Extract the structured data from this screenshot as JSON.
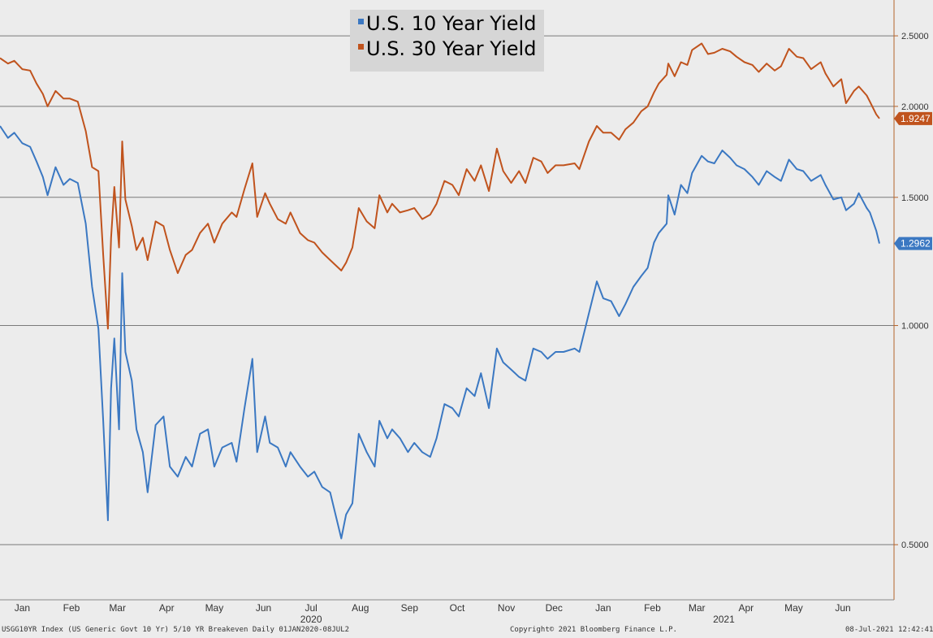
{
  "chart_data": {
    "type": "line",
    "yscale": "log",
    "ylim": [
      0.42,
      2.8
    ],
    "y_ticks": [
      "0.5000",
      "1.0000",
      "1.5000",
      "2.0000",
      "2.5000"
    ],
    "y_tick_values": [
      0.5,
      1.0,
      1.5,
      2.0,
      2.5
    ],
    "x_range": [
      "2020-01-01",
      "2021-07-08"
    ],
    "x_ticks": [
      {
        "label": "Jan",
        "date": "2020-01-15"
      },
      {
        "label": "Feb",
        "date": "2020-02-15"
      },
      {
        "label": "Mar",
        "date": "2020-03-15"
      },
      {
        "label": "Apr",
        "date": "2020-04-15"
      },
      {
        "label": "May",
        "date": "2020-05-15"
      },
      {
        "label": "Jun",
        "date": "2020-06-15"
      },
      {
        "label": "Jul",
        "date": "2020-07-15"
      },
      {
        "label": "Aug",
        "date": "2020-08-15"
      },
      {
        "label": "Sep",
        "date": "2020-09-15"
      },
      {
        "label": "Oct",
        "date": "2020-10-15"
      },
      {
        "label": "Nov",
        "date": "2020-11-15"
      },
      {
        "label": "Dec",
        "date": "2020-12-15"
      },
      {
        "label": "Jan",
        "date": "2021-01-15"
      },
      {
        "label": "Feb",
        "date": "2021-02-15"
      },
      {
        "label": "Mar",
        "date": "2021-03-15"
      },
      {
        "label": "Apr",
        "date": "2021-04-15"
      },
      {
        "label": "May",
        "date": "2021-05-15"
      },
      {
        "label": "Jun",
        "date": "2021-06-15"
      }
    ],
    "year_labels": [
      {
        "label": "2020",
        "date": "2020-07-15"
      },
      {
        "label": "2021",
        "date": "2021-04-01"
      }
    ],
    "grid": "horizontal",
    "legend_position": "top-center",
    "series": [
      {
        "name": "U.S. 10 Year Yield",
        "color": "#3b78c2",
        "last_label": "1.2962",
        "points": [
          [
            "2020-01-01",
            1.88
          ],
          [
            "2020-01-06",
            1.81
          ],
          [
            "2020-01-10",
            1.84
          ],
          [
            "2020-01-15",
            1.78
          ],
          [
            "2020-01-20",
            1.76
          ],
          [
            "2020-01-24",
            1.68
          ],
          [
            "2020-01-28",
            1.6
          ],
          [
            "2020-01-31",
            1.51
          ],
          [
            "2020-02-05",
            1.65
          ],
          [
            "2020-02-10",
            1.56
          ],
          [
            "2020-02-14",
            1.59
          ],
          [
            "2020-02-19",
            1.57
          ],
          [
            "2020-02-24",
            1.38
          ],
          [
            "2020-02-28",
            1.13
          ],
          [
            "2020-03-03",
            0.99
          ],
          [
            "2020-03-06",
            0.74
          ],
          [
            "2020-03-09",
            0.54
          ],
          [
            "2020-03-11",
            0.82
          ],
          [
            "2020-03-13",
            0.96
          ],
          [
            "2020-03-16",
            0.72
          ],
          [
            "2020-03-18",
            1.18
          ],
          [
            "2020-03-20",
            0.92
          ],
          [
            "2020-03-24",
            0.84
          ],
          [
            "2020-03-27",
            0.72
          ],
          [
            "2020-03-31",
            0.67
          ],
          [
            "2020-04-03",
            0.59
          ],
          [
            "2020-04-08",
            0.73
          ],
          [
            "2020-04-13",
            0.75
          ],
          [
            "2020-04-17",
            0.64
          ],
          [
            "2020-04-22",
            0.62
          ],
          [
            "2020-04-27",
            0.66
          ],
          [
            "2020-05-01",
            0.64
          ],
          [
            "2020-05-06",
            0.71
          ],
          [
            "2020-05-11",
            0.72
          ],
          [
            "2020-05-15",
            0.64
          ],
          [
            "2020-05-20",
            0.68
          ],
          [
            "2020-05-26",
            0.69
          ],
          [
            "2020-05-29",
            0.65
          ],
          [
            "2020-06-03",
            0.77
          ],
          [
            "2020-06-08",
            0.9
          ],
          [
            "2020-06-11",
            0.67
          ],
          [
            "2020-06-16",
            0.75
          ],
          [
            "2020-06-19",
            0.69
          ],
          [
            "2020-06-24",
            0.68
          ],
          [
            "2020-06-29",
            0.64
          ],
          [
            "2020-07-02",
            0.67
          ],
          [
            "2020-07-08",
            0.64
          ],
          [
            "2020-07-13",
            0.62
          ],
          [
            "2020-07-17",
            0.63
          ],
          [
            "2020-07-22",
            0.6
          ],
          [
            "2020-07-27",
            0.59
          ],
          [
            "2020-08-03",
            0.51
          ],
          [
            "2020-08-06",
            0.55
          ],
          [
            "2020-08-10",
            0.57
          ],
          [
            "2020-08-14",
            0.71
          ],
          [
            "2020-08-19",
            0.67
          ],
          [
            "2020-08-24",
            0.64
          ],
          [
            "2020-08-27",
            0.74
          ],
          [
            "2020-09-01",
            0.7
          ],
          [
            "2020-09-04",
            0.72
          ],
          [
            "2020-09-09",
            0.7
          ],
          [
            "2020-09-14",
            0.67
          ],
          [
            "2020-09-18",
            0.69
          ],
          [
            "2020-09-23",
            0.67
          ],
          [
            "2020-09-28",
            0.66
          ],
          [
            "2020-10-02",
            0.7
          ],
          [
            "2020-10-07",
            0.78
          ],
          [
            "2020-10-12",
            0.77
          ],
          [
            "2020-10-16",
            0.75
          ],
          [
            "2020-10-21",
            0.82
          ],
          [
            "2020-10-26",
            0.8
          ],
          [
            "2020-10-30",
            0.86
          ],
          [
            "2020-11-04",
            0.77
          ],
          [
            "2020-11-09",
            0.93
          ],
          [
            "2020-11-13",
            0.89
          ],
          [
            "2020-11-18",
            0.87
          ],
          [
            "2020-11-23",
            0.85
          ],
          [
            "2020-11-27",
            0.84
          ],
          [
            "2020-12-02",
            0.93
          ],
          [
            "2020-12-07",
            0.92
          ],
          [
            "2020-12-11",
            0.9
          ],
          [
            "2020-12-16",
            0.92
          ],
          [
            "2020-12-21",
            0.92
          ],
          [
            "2020-12-28",
            0.93
          ],
          [
            "2020-12-31",
            0.92
          ],
          [
            "2021-01-06",
            1.04
          ],
          [
            "2021-01-11",
            1.15
          ],
          [
            "2021-01-15",
            1.09
          ],
          [
            "2021-01-20",
            1.08
          ],
          [
            "2021-01-25",
            1.03
          ],
          [
            "2021-01-29",
            1.07
          ],
          [
            "2021-02-03",
            1.13
          ],
          [
            "2021-02-08",
            1.17
          ],
          [
            "2021-02-12",
            1.2
          ],
          [
            "2021-02-16",
            1.3
          ],
          [
            "2021-02-19",
            1.34
          ],
          [
            "2021-02-24",
            1.38
          ],
          [
            "2021-02-25",
            1.51
          ],
          [
            "2021-03-01",
            1.42
          ],
          [
            "2021-03-05",
            1.56
          ],
          [
            "2021-03-09",
            1.52
          ],
          [
            "2021-03-12",
            1.62
          ],
          [
            "2021-03-18",
            1.71
          ],
          [
            "2021-03-22",
            1.68
          ],
          [
            "2021-03-26",
            1.67
          ],
          [
            "2021-03-31",
            1.74
          ],
          [
            "2021-04-05",
            1.7
          ],
          [
            "2021-04-09",
            1.66
          ],
          [
            "2021-04-14",
            1.64
          ],
          [
            "2021-04-19",
            1.6
          ],
          [
            "2021-04-23",
            1.56
          ],
          [
            "2021-04-28",
            1.63
          ],
          [
            "2021-05-03",
            1.6
          ],
          [
            "2021-05-07",
            1.58
          ],
          [
            "2021-05-12",
            1.69
          ],
          [
            "2021-05-17",
            1.64
          ],
          [
            "2021-05-21",
            1.63
          ],
          [
            "2021-05-26",
            1.58
          ],
          [
            "2021-06-01",
            1.61
          ],
          [
            "2021-06-04",
            1.56
          ],
          [
            "2021-06-09",
            1.49
          ],
          [
            "2021-06-14",
            1.5
          ],
          [
            "2021-06-17",
            1.44
          ],
          [
            "2021-06-22",
            1.47
          ],
          [
            "2021-06-25",
            1.52
          ],
          [
            "2021-06-30",
            1.45
          ],
          [
            "2021-07-02",
            1.43
          ],
          [
            "2021-07-06",
            1.35
          ],
          [
            "2021-07-08",
            1.2962
          ]
        ]
      },
      {
        "name": "U.S. 30 Year Yield",
        "color": "#c0531d",
        "last_label": "1.9247",
        "points": [
          [
            "2020-01-01",
            2.33
          ],
          [
            "2020-01-06",
            2.29
          ],
          [
            "2020-01-10",
            2.31
          ],
          [
            "2020-01-15",
            2.25
          ],
          [
            "2020-01-20",
            2.24
          ],
          [
            "2020-01-24",
            2.15
          ],
          [
            "2020-01-28",
            2.08
          ],
          [
            "2020-01-31",
            2.0
          ],
          [
            "2020-02-05",
            2.1
          ],
          [
            "2020-02-10",
            2.05
          ],
          [
            "2020-02-14",
            2.05
          ],
          [
            "2020-02-19",
            2.03
          ],
          [
            "2020-02-24",
            1.85
          ],
          [
            "2020-02-28",
            1.65
          ],
          [
            "2020-03-03",
            1.63
          ],
          [
            "2020-03-06",
            1.25
          ],
          [
            "2020-03-09",
            0.99
          ],
          [
            "2020-03-11",
            1.32
          ],
          [
            "2020-03-13",
            1.55
          ],
          [
            "2020-03-16",
            1.28
          ],
          [
            "2020-03-18",
            1.79
          ],
          [
            "2020-03-20",
            1.49
          ],
          [
            "2020-03-24",
            1.37
          ],
          [
            "2020-03-27",
            1.27
          ],
          [
            "2020-03-31",
            1.32
          ],
          [
            "2020-04-03",
            1.23
          ],
          [
            "2020-04-08",
            1.39
          ],
          [
            "2020-04-13",
            1.37
          ],
          [
            "2020-04-17",
            1.27
          ],
          [
            "2020-04-22",
            1.18
          ],
          [
            "2020-04-27",
            1.25
          ],
          [
            "2020-05-01",
            1.27
          ],
          [
            "2020-05-06",
            1.34
          ],
          [
            "2020-05-11",
            1.38
          ],
          [
            "2020-05-15",
            1.3
          ],
          [
            "2020-05-20",
            1.38
          ],
          [
            "2020-05-26",
            1.43
          ],
          [
            "2020-05-29",
            1.41
          ],
          [
            "2020-06-03",
            1.54
          ],
          [
            "2020-06-08",
            1.67
          ],
          [
            "2020-06-11",
            1.41
          ],
          [
            "2020-06-16",
            1.52
          ],
          [
            "2020-06-19",
            1.47
          ],
          [
            "2020-06-24",
            1.4
          ],
          [
            "2020-06-29",
            1.38
          ],
          [
            "2020-07-02",
            1.43
          ],
          [
            "2020-07-08",
            1.34
          ],
          [
            "2020-07-13",
            1.31
          ],
          [
            "2020-07-17",
            1.3
          ],
          [
            "2020-07-22",
            1.26
          ],
          [
            "2020-07-27",
            1.23
          ],
          [
            "2020-08-03",
            1.19
          ],
          [
            "2020-08-06",
            1.22
          ],
          [
            "2020-08-10",
            1.28
          ],
          [
            "2020-08-14",
            1.45
          ],
          [
            "2020-08-19",
            1.39
          ],
          [
            "2020-08-24",
            1.36
          ],
          [
            "2020-08-27",
            1.51
          ],
          [
            "2020-09-01",
            1.43
          ],
          [
            "2020-09-04",
            1.47
          ],
          [
            "2020-09-09",
            1.43
          ],
          [
            "2020-09-14",
            1.44
          ],
          [
            "2020-09-18",
            1.45
          ],
          [
            "2020-09-23",
            1.4
          ],
          [
            "2020-09-28",
            1.42
          ],
          [
            "2020-10-02",
            1.47
          ],
          [
            "2020-10-07",
            1.58
          ],
          [
            "2020-10-12",
            1.56
          ],
          [
            "2020-10-16",
            1.51
          ],
          [
            "2020-10-21",
            1.64
          ],
          [
            "2020-10-26",
            1.58
          ],
          [
            "2020-10-30",
            1.66
          ],
          [
            "2020-11-04",
            1.53
          ],
          [
            "2020-11-09",
            1.75
          ],
          [
            "2020-11-13",
            1.63
          ],
          [
            "2020-11-18",
            1.57
          ],
          [
            "2020-11-23",
            1.63
          ],
          [
            "2020-11-27",
            1.57
          ],
          [
            "2020-12-02",
            1.7
          ],
          [
            "2020-12-07",
            1.68
          ],
          [
            "2020-12-11",
            1.62
          ],
          [
            "2020-12-16",
            1.66
          ],
          [
            "2020-12-21",
            1.66
          ],
          [
            "2020-12-28",
            1.67
          ],
          [
            "2020-12-31",
            1.64
          ],
          [
            "2021-01-06",
            1.79
          ],
          [
            "2021-01-11",
            1.88
          ],
          [
            "2021-01-15",
            1.84
          ],
          [
            "2021-01-20",
            1.84
          ],
          [
            "2021-01-25",
            1.8
          ],
          [
            "2021-01-29",
            1.86
          ],
          [
            "2021-02-03",
            1.9
          ],
          [
            "2021-02-08",
            1.97
          ],
          [
            "2021-02-12",
            2.0
          ],
          [
            "2021-02-16",
            2.09
          ],
          [
            "2021-02-19",
            2.15
          ],
          [
            "2021-02-24",
            2.21
          ],
          [
            "2021-02-25",
            2.29
          ],
          [
            "2021-03-01",
            2.2
          ],
          [
            "2021-03-05",
            2.3
          ],
          [
            "2021-03-09",
            2.28
          ],
          [
            "2021-03-12",
            2.39
          ],
          [
            "2021-03-18",
            2.44
          ],
          [
            "2021-03-22",
            2.36
          ],
          [
            "2021-03-26",
            2.37
          ],
          [
            "2021-03-31",
            2.4
          ],
          [
            "2021-04-05",
            2.38
          ],
          [
            "2021-04-09",
            2.34
          ],
          [
            "2021-04-14",
            2.3
          ],
          [
            "2021-04-19",
            2.28
          ],
          [
            "2021-04-23",
            2.23
          ],
          [
            "2021-04-28",
            2.29
          ],
          [
            "2021-05-03",
            2.24
          ],
          [
            "2021-05-07",
            2.27
          ],
          [
            "2021-05-12",
            2.4
          ],
          [
            "2021-05-17",
            2.34
          ],
          [
            "2021-05-21",
            2.33
          ],
          [
            "2021-05-26",
            2.25
          ],
          [
            "2021-06-01",
            2.3
          ],
          [
            "2021-06-04",
            2.22
          ],
          [
            "2021-06-09",
            2.13
          ],
          [
            "2021-06-14",
            2.18
          ],
          [
            "2021-06-17",
            2.02
          ],
          [
            "2021-06-22",
            2.1
          ],
          [
            "2021-06-25",
            2.13
          ],
          [
            "2021-06-30",
            2.07
          ],
          [
            "2021-07-02",
            2.03
          ],
          [
            "2021-07-06",
            1.95
          ],
          [
            "2021-07-08",
            1.9247
          ]
        ]
      }
    ]
  },
  "footer": {
    "left": "USGG10YR Index (US Generic Govt 10 Yr) 5/10 YR Breakeven Daily 01JAN2020-08JUL2",
    "center": "Copyright© 2021 Bloomberg Finance L.P.",
    "right": "08-Jul-2021 12:42:41"
  }
}
